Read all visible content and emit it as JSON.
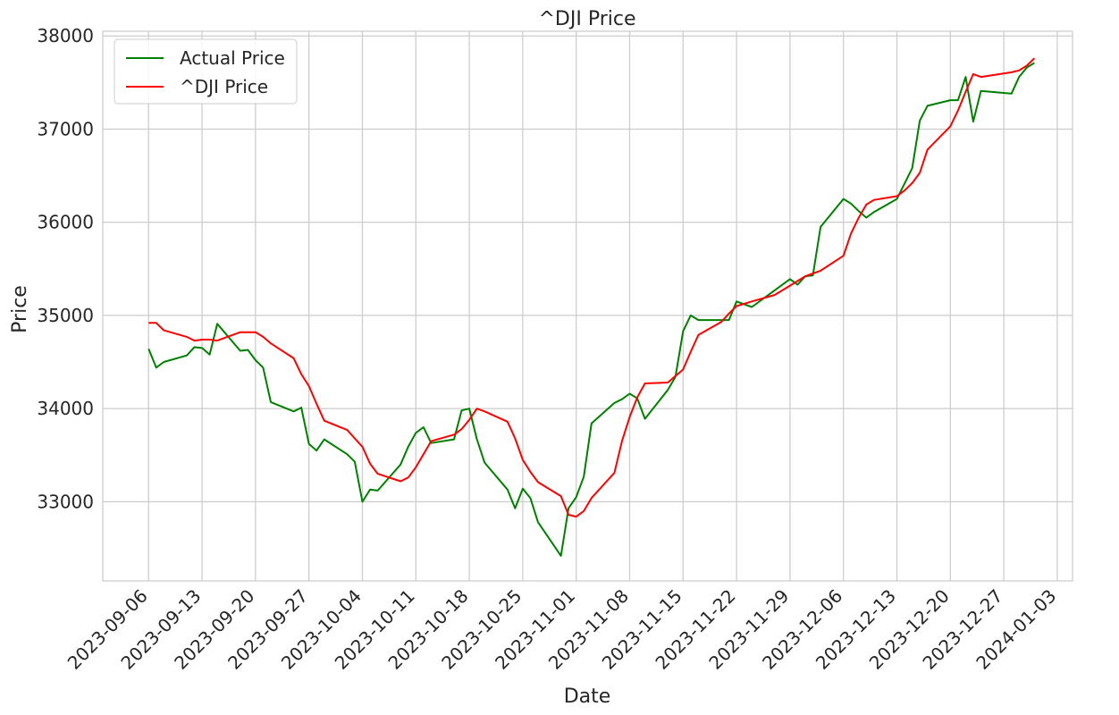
{
  "chart_data": {
    "type": "line",
    "title": "^DJI Price",
    "xlabel": "Date",
    "ylabel": "Price",
    "x_ticks": [
      "2023-09-06",
      "2023-09-13",
      "2023-09-20",
      "2023-09-27",
      "2023-10-04",
      "2023-10-11",
      "2023-10-18",
      "2023-10-25",
      "2023-11-01",
      "2023-11-08",
      "2023-11-15",
      "2023-11-22",
      "2023-11-29",
      "2023-12-06",
      "2023-12-13",
      "2023-12-20",
      "2023-12-27",
      "2024-01-03"
    ],
    "y_ticks": [
      33000,
      34000,
      35000,
      36000,
      37000,
      38000
    ],
    "xlim": [
      "2023-08-31",
      "2024-01-05"
    ],
    "ylim": [
      32150,
      38050
    ],
    "grid": true,
    "legend_position": "top-left",
    "series": [
      {
        "name": "Actual Price",
        "color": "#008000",
        "points": [
          [
            "2023-09-06",
            34640
          ],
          [
            "2023-09-07",
            34440
          ],
          [
            "2023-09-08",
            34500
          ],
          [
            "2023-09-11",
            34570
          ],
          [
            "2023-09-12",
            34660
          ],
          [
            "2023-09-13",
            34650
          ],
          [
            "2023-09-14",
            34580
          ],
          [
            "2023-09-15",
            34910
          ],
          [
            "2023-09-18",
            34620
          ],
          [
            "2023-09-19",
            34630
          ],
          [
            "2023-09-20",
            34520
          ],
          [
            "2023-09-21",
            34440
          ],
          [
            "2023-09-22",
            34070
          ],
          [
            "2023-09-25",
            33970
          ],
          [
            "2023-09-26",
            34010
          ],
          [
            "2023-09-27",
            33620
          ],
          [
            "2023-09-28",
            33550
          ],
          [
            "2023-09-29",
            33670
          ],
          [
            "2023-10-02",
            33510
          ],
          [
            "2023-10-03",
            33430
          ],
          [
            "2023-10-04",
            33000
          ],
          [
            "2023-10-05",
            33130
          ],
          [
            "2023-10-06",
            33120
          ],
          [
            "2023-10-09",
            33400
          ],
          [
            "2023-10-10",
            33590
          ],
          [
            "2023-10-11",
            33740
          ],
          [
            "2023-10-12",
            33800
          ],
          [
            "2023-10-13",
            33630
          ],
          [
            "2023-10-16",
            33670
          ],
          [
            "2023-10-17",
            33980
          ],
          [
            "2023-10-18",
            34000
          ],
          [
            "2023-10-19",
            33670
          ],
          [
            "2023-10-20",
            33420
          ],
          [
            "2023-10-23",
            33130
          ],
          [
            "2023-10-24",
            32930
          ],
          [
            "2023-10-25",
            33140
          ],
          [
            "2023-10-26",
            33040
          ],
          [
            "2023-10-27",
            32780
          ],
          [
            "2023-10-30",
            32420
          ],
          [
            "2023-10-31",
            32930
          ],
          [
            "2023-11-01",
            33050
          ],
          [
            "2023-11-02",
            33270
          ],
          [
            "2023-11-03",
            33840
          ],
          [
            "2023-11-06",
            34060
          ],
          [
            "2023-11-07",
            34100
          ],
          [
            "2023-11-08",
            34160
          ],
          [
            "2023-11-09",
            34110
          ],
          [
            "2023-11-10",
            33890
          ],
          [
            "2023-11-13",
            34200
          ],
          [
            "2023-11-14",
            34340
          ],
          [
            "2023-11-15",
            34830
          ],
          [
            "2023-11-16",
            35000
          ],
          [
            "2023-11-17",
            34950
          ],
          [
            "2023-11-20",
            34950
          ],
          [
            "2023-11-21",
            34950
          ],
          [
            "2023-11-22",
            35150
          ],
          [
            "2023-11-24",
            35090
          ],
          [
            "2023-11-27",
            35270
          ],
          [
            "2023-11-29",
            35390
          ],
          [
            "2023-11-30",
            35330
          ],
          [
            "2023-12-01",
            35420
          ],
          [
            "2023-12-02",
            35430
          ],
          [
            "2023-12-03",
            35950
          ],
          [
            "2023-12-06",
            36250
          ],
          [
            "2023-12-07",
            36200
          ],
          [
            "2023-12-08",
            36120
          ],
          [
            "2023-12-09",
            36050
          ],
          [
            "2023-12-10",
            36110
          ],
          [
            "2023-12-13",
            36250
          ],
          [
            "2023-12-15",
            36580
          ],
          [
            "2023-12-16",
            37090
          ],
          [
            "2023-12-17",
            37250
          ],
          [
            "2023-12-20",
            37310
          ],
          [
            "2023-12-21",
            37310
          ],
          [
            "2023-12-22",
            37560
          ],
          [
            "2023-12-23",
            37080
          ],
          [
            "2023-12-24",
            37410
          ],
          [
            "2023-12-28",
            37380
          ],
          [
            "2023-12-29",
            37560
          ],
          [
            "2023-12-30",
            37660
          ],
          [
            "2023-12-31",
            37710
          ]
        ]
      },
      {
        "name": "^DJI Price",
        "color": "#ff0000",
        "points": [
          [
            "2023-09-06",
            34920
          ],
          [
            "2023-09-07",
            34920
          ],
          [
            "2023-09-08",
            34840
          ],
          [
            "2023-09-11",
            34770
          ],
          [
            "2023-09-12",
            34730
          ],
          [
            "2023-09-13",
            34740
          ],
          [
            "2023-09-14",
            34740
          ],
          [
            "2023-09-15",
            34730
          ],
          [
            "2023-09-18",
            34820
          ],
          [
            "2023-09-19",
            34820
          ],
          [
            "2023-09-20",
            34820
          ],
          [
            "2023-09-21",
            34770
          ],
          [
            "2023-09-22",
            34700
          ],
          [
            "2023-09-25",
            34540
          ],
          [
            "2023-09-26",
            34370
          ],
          [
            "2023-09-27",
            34240
          ],
          [
            "2023-09-28",
            34050
          ],
          [
            "2023-09-29",
            33870
          ],
          [
            "2023-10-02",
            33770
          ],
          [
            "2023-10-03",
            33680
          ],
          [
            "2023-10-04",
            33590
          ],
          [
            "2023-10-05",
            33410
          ],
          [
            "2023-10-06",
            33300
          ],
          [
            "2023-10-09",
            33220
          ],
          [
            "2023-10-10",
            33260
          ],
          [
            "2023-10-11",
            33370
          ],
          [
            "2023-10-12",
            33510
          ],
          [
            "2023-10-13",
            33650
          ],
          [
            "2023-10-16",
            33720
          ],
          [
            "2023-10-17",
            33780
          ],
          [
            "2023-10-18",
            33880
          ],
          [
            "2023-10-19",
            34000
          ],
          [
            "2023-10-20",
            33970
          ],
          [
            "2023-10-23",
            33860
          ],
          [
            "2023-10-24",
            33680
          ],
          [
            "2023-10-25",
            33450
          ],
          [
            "2023-10-26",
            33320
          ],
          [
            "2023-10-27",
            33210
          ],
          [
            "2023-10-30",
            33060
          ],
          [
            "2023-10-31",
            32860
          ],
          [
            "2023-11-01",
            32840
          ],
          [
            "2023-11-02",
            32900
          ],
          [
            "2023-11-03",
            33040
          ],
          [
            "2023-11-06",
            33310
          ],
          [
            "2023-11-07",
            33650
          ],
          [
            "2023-11-08",
            33910
          ],
          [
            "2023-11-09",
            34120
          ],
          [
            "2023-11-10",
            34270
          ],
          [
            "2023-11-13",
            34280
          ],
          [
            "2023-11-14",
            34350
          ],
          [
            "2023-11-15",
            34420
          ],
          [
            "2023-11-16",
            34610
          ],
          [
            "2023-11-17",
            34790
          ],
          [
            "2023-11-20",
            34930
          ],
          [
            "2023-11-21",
            35020
          ],
          [
            "2023-11-22",
            35100
          ],
          [
            "2023-11-24",
            35150
          ],
          [
            "2023-11-27",
            35220
          ],
          [
            "2023-11-29",
            35320
          ],
          [
            "2023-11-30",
            35370
          ],
          [
            "2023-12-01",
            35420
          ],
          [
            "2023-12-02",
            35450
          ],
          [
            "2023-12-03",
            35480
          ],
          [
            "2023-12-06",
            35640
          ],
          [
            "2023-12-07",
            35880
          ],
          [
            "2023-12-08",
            36050
          ],
          [
            "2023-12-09",
            36190
          ],
          [
            "2023-12-10",
            36240
          ],
          [
            "2023-12-13",
            36280
          ],
          [
            "2023-12-14",
            36340
          ],
          [
            "2023-12-15",
            36420
          ],
          [
            "2023-12-16",
            36530
          ],
          [
            "2023-12-17",
            36780
          ],
          [
            "2023-12-20",
            37030
          ],
          [
            "2023-12-21",
            37200
          ],
          [
            "2023-12-22",
            37400
          ],
          [
            "2023-12-23",
            37590
          ],
          [
            "2023-12-24",
            37560
          ],
          [
            "2023-12-28",
            37610
          ],
          [
            "2023-12-29",
            37630
          ],
          [
            "2023-12-30",
            37680
          ],
          [
            "2023-12-31",
            37760
          ]
        ]
      }
    ]
  }
}
